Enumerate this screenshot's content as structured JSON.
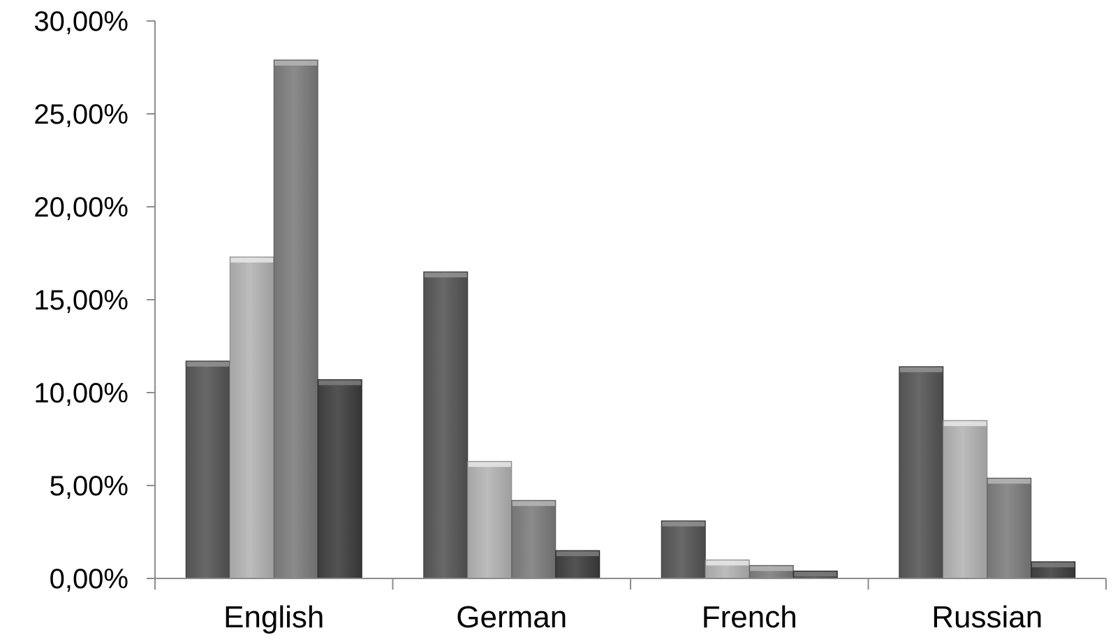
{
  "chart_data": {
    "type": "bar",
    "categories": [
      "English",
      "German",
      "French",
      "Russian"
    ],
    "series": [
      {
        "values": [
          11.7,
          16.5,
          3.1,
          11.4
        ],
        "color": "#5c5c5c"
      },
      {
        "values": [
          17.3,
          6.3,
          1.0,
          8.5
        ],
        "color": "#b0b0b0"
      },
      {
        "values": [
          27.9,
          4.2,
          0.7,
          5.4
        ],
        "color": "#7f7f7f"
      },
      {
        "values": [
          10.7,
          1.5,
          0.4,
          0.9
        ],
        "color": "#474747"
      }
    ],
    "ylim": [
      0,
      30
    ],
    "yticks": [
      0,
      5,
      10,
      15,
      20,
      25,
      30
    ],
    "ytick_labels": [
      "0,00%",
      "5,00%",
      "10,00%",
      "15,00%",
      "20,00%",
      "25,00%",
      "30,00%"
    ],
    "grid": false,
    "legend": "none"
  }
}
